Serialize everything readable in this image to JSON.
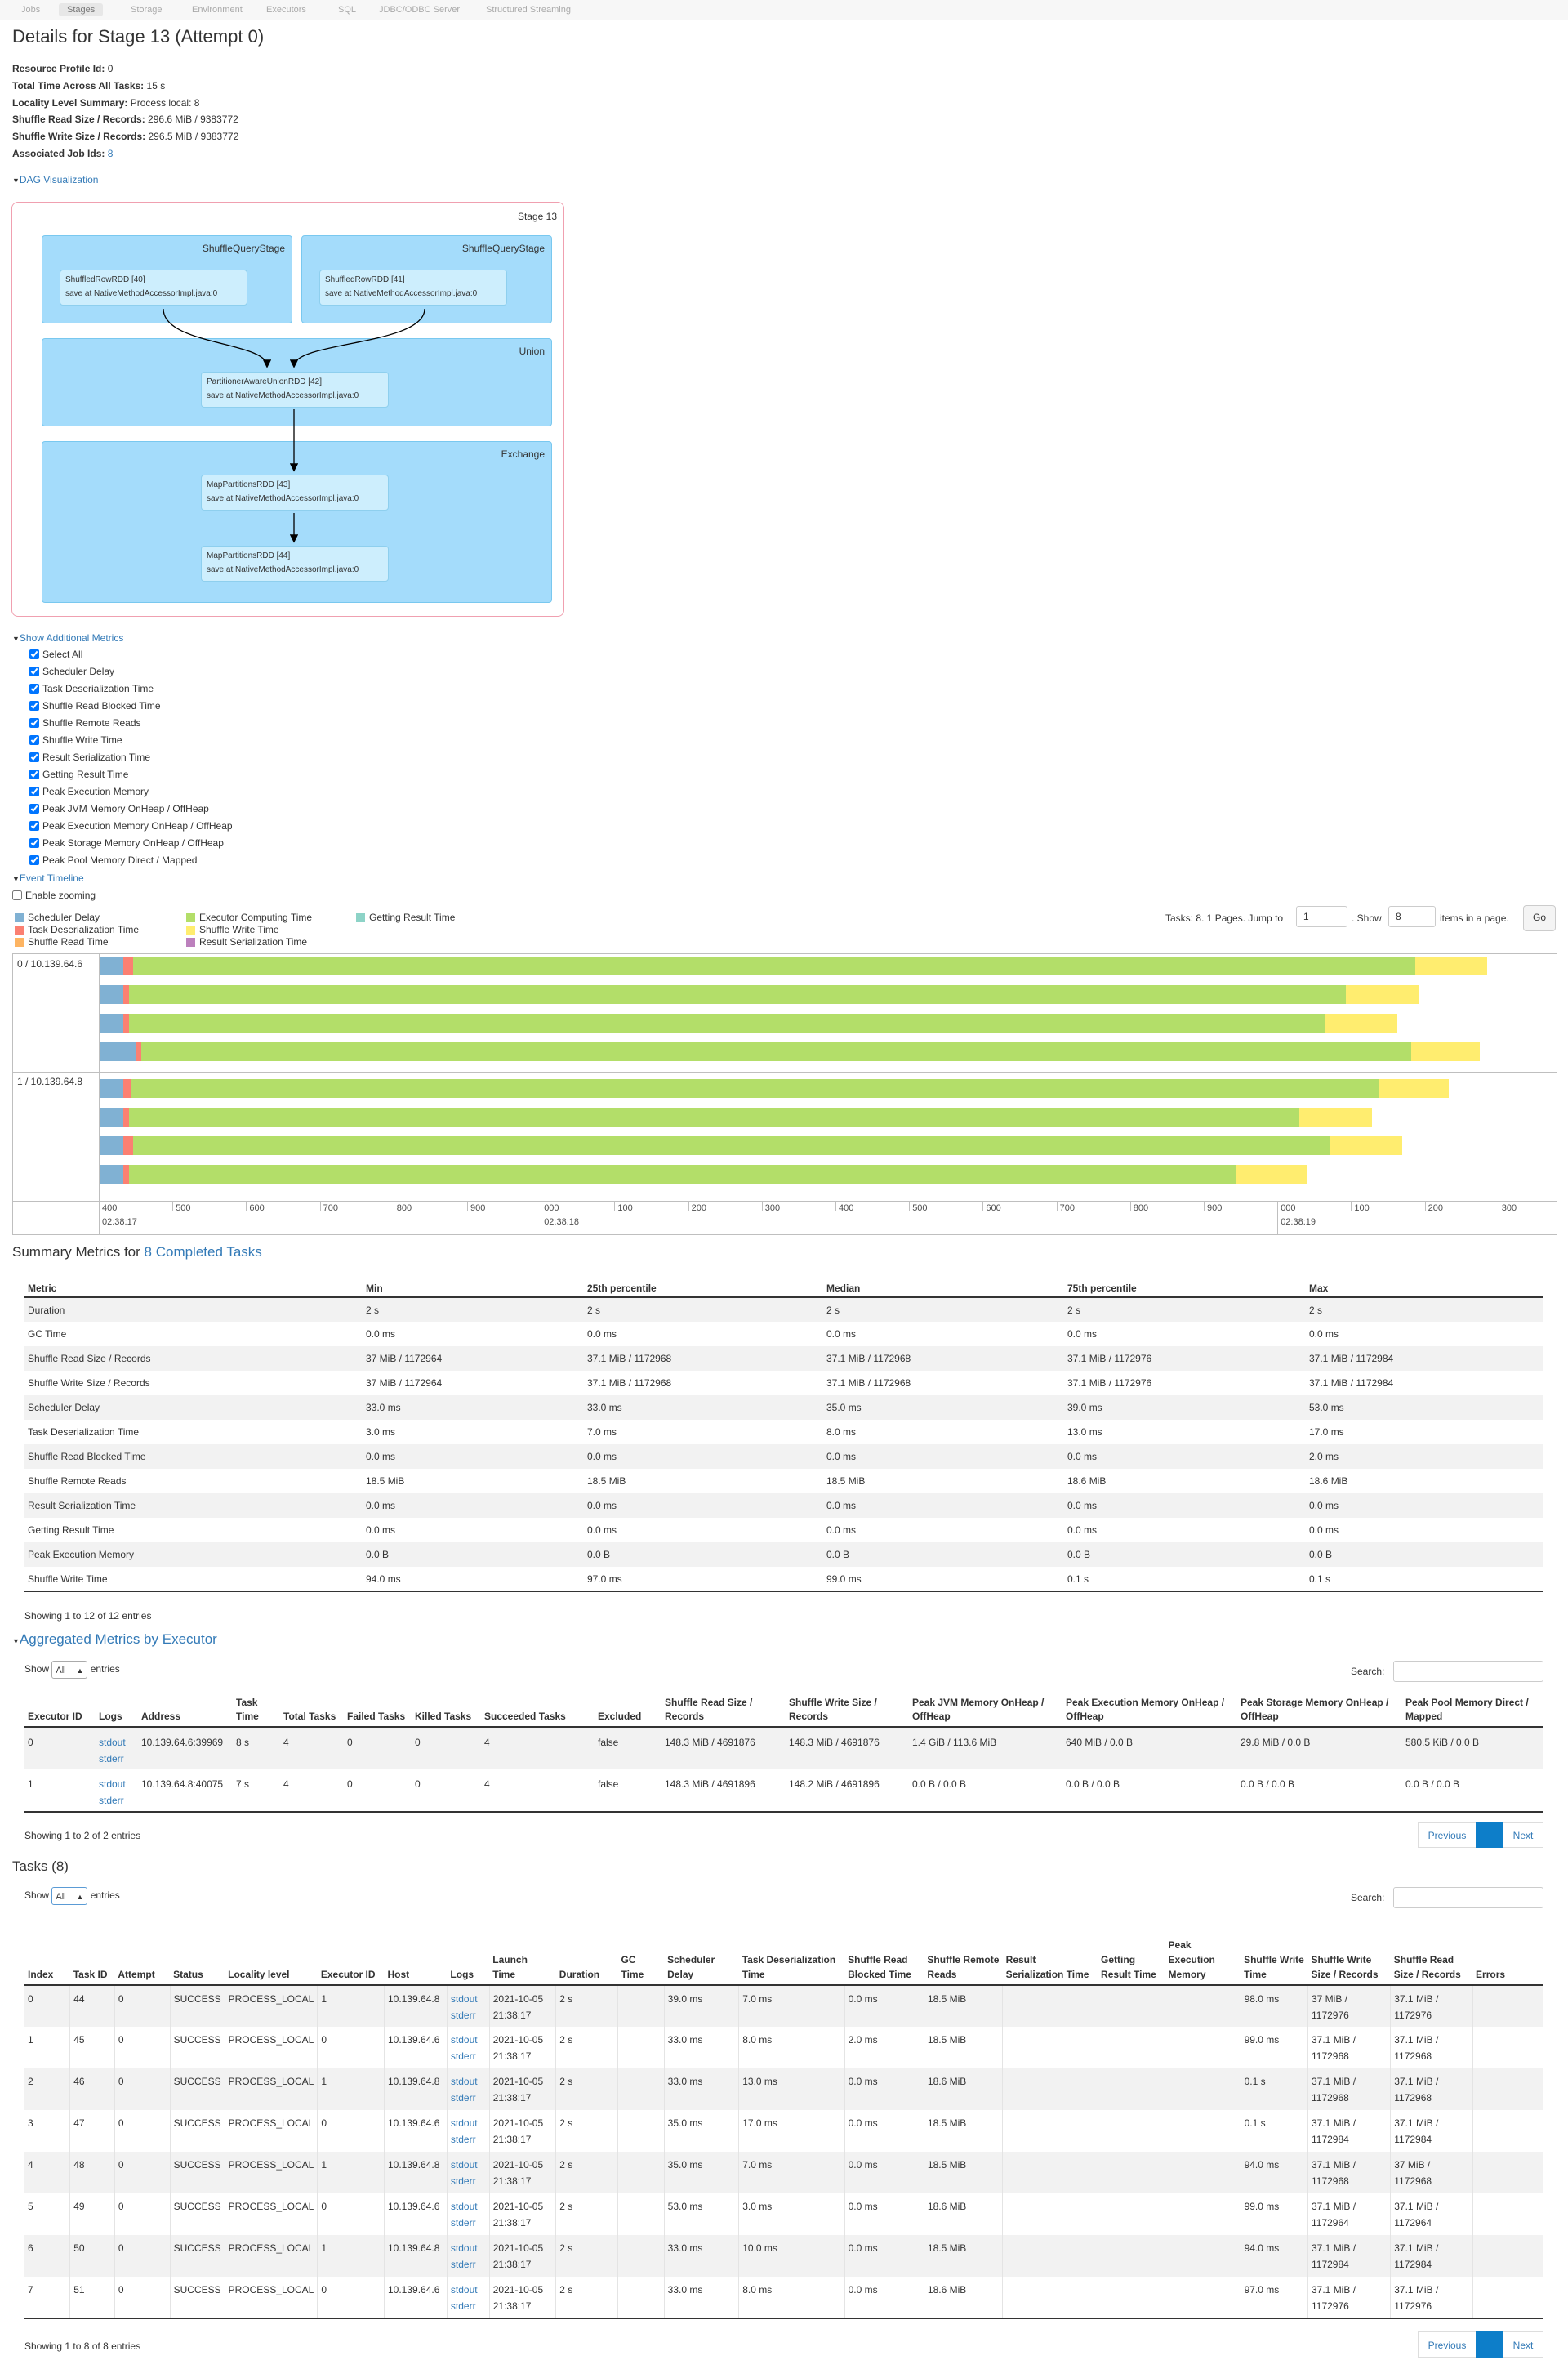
{
  "nav": {
    "tabs": [
      "Jobs",
      "Stages",
      "Storage",
      "Environment",
      "Executors",
      "SQL",
      "JDBC/ODBC Server",
      "Structured Streaming"
    ],
    "active": 1
  },
  "title": "Details for Stage 13 (Attempt 0)",
  "summary": [
    {
      "label": "Resource Profile Id:",
      "value": "0"
    },
    {
      "label": "Total Time Across All Tasks:",
      "value": "15 s"
    },
    {
      "label": "Locality Level Summary:",
      "value": "Process local: 8"
    },
    {
      "label": "Shuffle Read Size / Records:",
      "value": "296.6 MiB / 9383772"
    },
    {
      "label": "Shuffle Write Size / Records:",
      "value": "296.5 MiB / 9383772"
    },
    {
      "label": "Associated Job Ids:",
      "value": "8"
    }
  ],
  "dag": {
    "toggle": "DAG Visualization",
    "stage_label": "Stage 13",
    "clusters": [
      "ShuffleQueryStage",
      "ShuffleQueryStage",
      "Union",
      "Exchange"
    ],
    "rdds": [
      {
        "name": "ShuffledRowRDD [40]",
        "callsite": "save at NativeMethodAccessorImpl.java:0"
      },
      {
        "name": "ShuffledRowRDD [41]",
        "callsite": "save at NativeMethodAccessorImpl.java:0"
      },
      {
        "name": "PartitionerAwareUnionRDD [42]",
        "callsite": "save at NativeMethodAccessorImpl.java:0"
      },
      {
        "name": "MapPartitionsRDD [43]",
        "callsite": "save at NativeMethodAccessorImpl.java:0"
      },
      {
        "name": "MapPartitionsRDD [44]",
        "callsite": "save at NativeMethodAccessorImpl.java:0"
      }
    ]
  },
  "additional_metrics": {
    "toggle": "Show Additional Metrics",
    "items": [
      "Select All",
      "Scheduler Delay",
      "Task Deserialization Time",
      "Shuffle Read Blocked Time",
      "Shuffle Remote Reads",
      "Shuffle Write Time",
      "Result Serialization Time",
      "Getting Result Time",
      "Peak Execution Memory",
      "Peak JVM Memory OnHeap / OffHeap",
      "Peak Execution Memory OnHeap / OffHeap",
      "Peak Storage Memory OnHeap / OffHeap",
      "Peak Pool Memory Direct / Mapped"
    ]
  },
  "timeline": {
    "toggle": "Event Timeline",
    "zoom_label": "Enable zooming",
    "legend": [
      {
        "label": "Scheduler Delay",
        "color": "#80b1d3"
      },
      {
        "label": "Task Deserialization Time",
        "color": "#fb8072"
      },
      {
        "label": "Shuffle Read Time",
        "color": "#fdb462"
      },
      {
        "label": "Executor Computing Time",
        "color": "#b3de69"
      },
      {
        "label": "Shuffle Write Time",
        "color": "#ffed6f"
      },
      {
        "label": "Result Serialization Time",
        "color": "#bc80bd"
      },
      {
        "label": "Getting Result Time",
        "color": "#8dd3c7"
      }
    ],
    "pager": {
      "prefix": "Tasks: 8. 1 Pages. Jump to",
      "jump_value": "1",
      "show_label": ". Show",
      "show_value": "8",
      "suffix": "items in a page.",
      "go": "Go"
    },
    "groups": [
      "0 / 10.139.64.6",
      "1 / 10.139.64.8"
    ],
    "axis_labels": [
      "400",
      "500",
      "600",
      "700",
      "800",
      "900",
      "000",
      "100",
      "200",
      "300",
      "400",
      "500",
      "600",
      "700",
      "800",
      "900",
      "000",
      "100",
      "200",
      "300"
    ],
    "axis_dates": [
      "02:38:17",
      "02:38:18",
      "02:38:19"
    ],
    "tasks": [
      {
        "group": 0,
        "sched": 0.031,
        "deser": 0.013,
        "compute": 1.741,
        "write": 0.098
      },
      {
        "group": 0,
        "sched": 0.031,
        "deser": 0.008,
        "compute": 1.652,
        "write": 0.099
      },
      {
        "group": 0,
        "sched": 0.031,
        "deser": 0.008,
        "compute": 1.624,
        "write": 0.097
      },
      {
        "group": 0,
        "sched": 0.048,
        "deser": 0.007,
        "compute": 1.724,
        "write": 0.094
      },
      {
        "group": 1,
        "sched": 0.031,
        "deser": 0.01,
        "compute": 1.695,
        "write": 0.094
      },
      {
        "group": 1,
        "sched": 0.031,
        "deser": 0.008,
        "compute": 1.589,
        "write": 0.098
      },
      {
        "group": 1,
        "sched": 0.031,
        "deser": 0.013,
        "compute": 1.624,
        "write": 0.099
      },
      {
        "group": 1,
        "sched": 0.031,
        "deser": 0.008,
        "compute": 1.503,
        "write": 0.097
      }
    ]
  },
  "summary_metrics": {
    "title_prefix": "Summary Metrics for",
    "title_link": "8 Completed Tasks",
    "headers": [
      "Metric",
      "Min",
      "25th percentile",
      "Median",
      "75th percentile",
      "Max"
    ],
    "rows": [
      [
        "Duration",
        "2 s",
        "2 s",
        "2 s",
        "2 s",
        "2 s"
      ],
      [
        "GC Time",
        "0.0 ms",
        "0.0 ms",
        "0.0 ms",
        "0.0 ms",
        "0.0 ms"
      ],
      [
        "Shuffle Read Size / Records",
        "37 MiB / 1172964",
        "37.1 MiB / 1172968",
        "37.1 MiB / 1172968",
        "37.1 MiB / 1172976",
        "37.1 MiB / 1172984"
      ],
      [
        "Shuffle Write Size / Records",
        "37 MiB / 1172964",
        "37.1 MiB / 1172968",
        "37.1 MiB / 1172968",
        "37.1 MiB / 1172976",
        "37.1 MiB / 1172984"
      ],
      [
        "Scheduler Delay",
        "33.0 ms",
        "33.0 ms",
        "35.0 ms",
        "39.0 ms",
        "53.0 ms"
      ],
      [
        "Task Deserialization Time",
        "3.0 ms",
        "7.0 ms",
        "8.0 ms",
        "13.0 ms",
        "17.0 ms"
      ],
      [
        "Shuffle Read Blocked Time",
        "0.0 ms",
        "0.0 ms",
        "0.0 ms",
        "0.0 ms",
        "2.0 ms"
      ],
      [
        "Shuffle Remote Reads",
        "18.5 MiB",
        "18.5 MiB",
        "18.5 MiB",
        "18.6 MiB",
        "18.6 MiB"
      ],
      [
        "Result Serialization Time",
        "0.0 ms",
        "0.0 ms",
        "0.0 ms",
        "0.0 ms",
        "0.0 ms"
      ],
      [
        "Getting Result Time",
        "0.0 ms",
        "0.0 ms",
        "0.0 ms",
        "0.0 ms",
        "0.0 ms"
      ],
      [
        "Peak Execution Memory",
        "0.0 B",
        "0.0 B",
        "0.0 B",
        "0.0 B",
        "0.0 B"
      ],
      [
        "Shuffle Write Time",
        "94.0 ms",
        "97.0 ms",
        "99.0 ms",
        "0.1 s",
        "0.1 s"
      ]
    ],
    "footer": "Showing 1 to 12 of 12 entries"
  },
  "executors": {
    "toggle": "Aggregated Metrics by Executor",
    "show_label": "Show",
    "show_value": "All",
    "entries_label": "entries",
    "search_label": "Search:",
    "headers": [
      "Executor ID",
      "Logs",
      "Address",
      "Task Time",
      "Total Tasks",
      "Failed Tasks",
      "Killed Tasks",
      "Succeeded Tasks",
      "Excluded",
      "Shuffle Read Size / Records",
      "Shuffle Write Size / Records",
      "Peak JVM Memory OnHeap / OffHeap",
      "Peak Execution Memory OnHeap / OffHeap",
      "Peak Storage Memory OnHeap / OffHeap",
      "Peak Pool Memory Direct / Mapped"
    ],
    "rows": [
      [
        "0",
        "",
        "10.139.64.6:39969",
        "8 s",
        "4",
        "0",
        "0",
        "4",
        "false",
        "148.3 MiB / 4691876",
        "148.3 MiB / 4691876",
        "1.4 GiB / 113.6 MiB",
        "640 MiB / 0.0 B",
        "29.8 MiB / 0.0 B",
        "580.5 KiB / 0.0 B"
      ],
      [
        "1",
        "",
        "10.139.64.8:40075",
        "7 s",
        "4",
        "0",
        "0",
        "4",
        "false",
        "148.3 MiB / 4691896",
        "148.2 MiB / 4691896",
        "0.0 B / 0.0 B",
        "0.0 B / 0.0 B",
        "0.0 B / 0.0 B",
        "0.0 B / 0.0 B"
      ]
    ],
    "log_links": [
      "stdout",
      "stderr"
    ],
    "footer": "Showing 1 to 2 of 2 entries",
    "prev": "Previous",
    "next": "Next"
  },
  "tasks": {
    "title": "Tasks (8)",
    "show_label": "Show",
    "show_value": "All",
    "entries_label": "entries",
    "search_label": "Search:",
    "headers": [
      "Index",
      "Task ID",
      "Attempt",
      "Status",
      "Locality level",
      "Executor ID",
      "Host",
      "Logs",
      "Launch Time",
      "Duration",
      "GC Time",
      "Scheduler Delay",
      "Task Deserialization Time",
      "Shuffle Read Blocked Time",
      "Shuffle Remote Reads",
      "Result Serialization Time",
      "Getting Result Time",
      "Peak Execution Memory",
      "Shuffle Write Time",
      "Shuffle Write Size / Records",
      "Shuffle Read Size / Records",
      "Errors"
    ],
    "rows": [
      [
        "0",
        "44",
        "0",
        "SUCCESS",
        "PROCESS_LOCAL",
        "1",
        "10.139.64.8",
        "",
        "2021-10-05 21:38:17",
        "2 s",
        "",
        "39.0 ms",
        "7.0 ms",
        "0.0 ms",
        "18.5 MiB",
        "",
        "",
        "",
        "98.0 ms",
        "37 MiB / 1172976",
        "37.1 MiB / 1172976",
        ""
      ],
      [
        "1",
        "45",
        "0",
        "SUCCESS",
        "PROCESS_LOCAL",
        "0",
        "10.139.64.6",
        "",
        "2021-10-05 21:38:17",
        "2 s",
        "",
        "33.0 ms",
        "8.0 ms",
        "2.0 ms",
        "18.5 MiB",
        "",
        "",
        "",
        "99.0 ms",
        "37.1 MiB / 1172968",
        "37.1 MiB / 1172968",
        ""
      ],
      [
        "2",
        "46",
        "0",
        "SUCCESS",
        "PROCESS_LOCAL",
        "1",
        "10.139.64.8",
        "",
        "2021-10-05 21:38:17",
        "2 s",
        "",
        "33.0 ms",
        "13.0 ms",
        "0.0 ms",
        "18.6 MiB",
        "",
        "",
        "",
        "0.1 s",
        "37.1 MiB / 1172968",
        "37.1 MiB / 1172968",
        ""
      ],
      [
        "3",
        "47",
        "0",
        "SUCCESS",
        "PROCESS_LOCAL",
        "0",
        "10.139.64.6",
        "",
        "2021-10-05 21:38:17",
        "2 s",
        "",
        "35.0 ms",
        "17.0 ms",
        "0.0 ms",
        "18.5 MiB",
        "",
        "",
        "",
        "0.1 s",
        "37.1 MiB / 1172984",
        "37.1 MiB / 1172984",
        ""
      ],
      [
        "4",
        "48",
        "0",
        "SUCCESS",
        "PROCESS_LOCAL",
        "1",
        "10.139.64.8",
        "",
        "2021-10-05 21:38:17",
        "2 s",
        "",
        "35.0 ms",
        "7.0 ms",
        "0.0 ms",
        "18.5 MiB",
        "",
        "",
        "",
        "94.0 ms",
        "37.1 MiB / 1172968",
        "37 MiB / 1172968",
        ""
      ],
      [
        "5",
        "49",
        "0",
        "SUCCESS",
        "PROCESS_LOCAL",
        "0",
        "10.139.64.6",
        "",
        "2021-10-05 21:38:17",
        "2 s",
        "",
        "53.0 ms",
        "3.0 ms",
        "0.0 ms",
        "18.6 MiB",
        "",
        "",
        "",
        "99.0 ms",
        "37.1 MiB / 1172964",
        "37.1 MiB / 1172964",
        ""
      ],
      [
        "6",
        "50",
        "0",
        "SUCCESS",
        "PROCESS_LOCAL",
        "1",
        "10.139.64.8",
        "",
        "2021-10-05 21:38:17",
        "2 s",
        "",
        "33.0 ms",
        "10.0 ms",
        "0.0 ms",
        "18.5 MiB",
        "",
        "",
        "",
        "94.0 ms",
        "37.1 MiB / 1172984",
        "37.1 MiB / 1172984",
        ""
      ],
      [
        "7",
        "51",
        "0",
        "SUCCESS",
        "PROCESS_LOCAL",
        "0",
        "10.139.64.6",
        "",
        "2021-10-05 21:38:17",
        "2 s",
        "",
        "33.0 ms",
        "8.0 ms",
        "0.0 ms",
        "18.6 MiB",
        "",
        "",
        "",
        "97.0 ms",
        "37.1 MiB / 1172976",
        "37.1 MiB / 1172976",
        ""
      ]
    ],
    "log_links": [
      "stdout",
      "stderr"
    ],
    "footer": "Showing 1 to 8 of 8 entries",
    "prev": "Previous",
    "next": "Next"
  }
}
